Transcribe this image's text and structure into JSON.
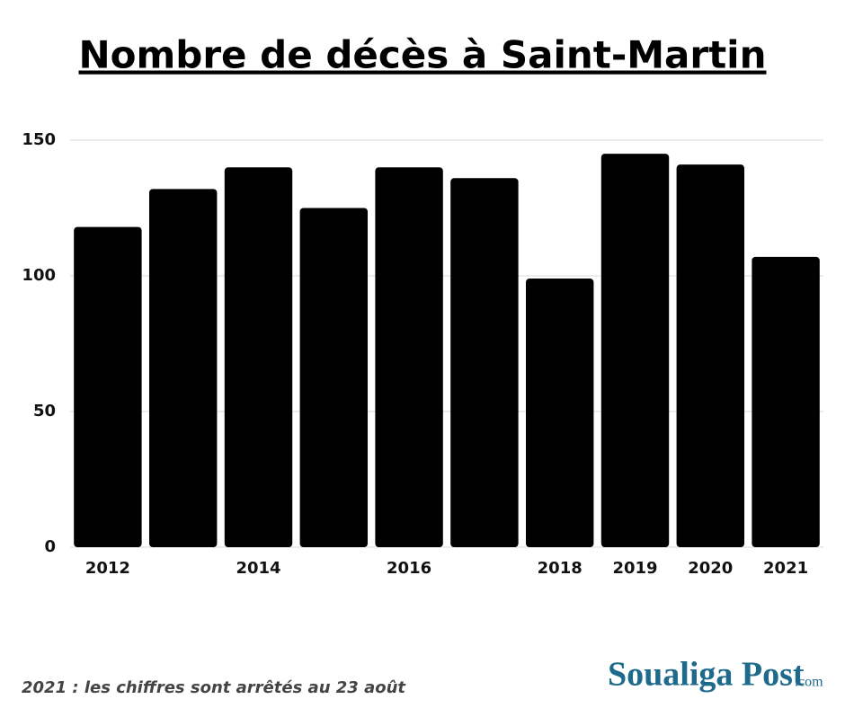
{
  "chart_data": {
    "type": "bar",
    "title": "Nombre de décès à Saint-Martin",
    "categories": [
      "2012",
      null,
      "2014",
      null,
      "2016",
      null,
      "2018",
      "2019",
      "2020",
      "2021"
    ],
    "values": [
      118,
      132,
      140,
      125,
      140,
      136,
      99,
      145,
      141,
      107
    ],
    "color": "#000000",
    "ylim": [
      0,
      150
    ],
    "yticks": [
      0,
      50,
      100,
      150
    ],
    "grid": true,
    "note": "2021 : les chiffres sont arrêtés au 23 août",
    "logo": "Soualiga Post",
    "logo_suffix": ".com"
  }
}
